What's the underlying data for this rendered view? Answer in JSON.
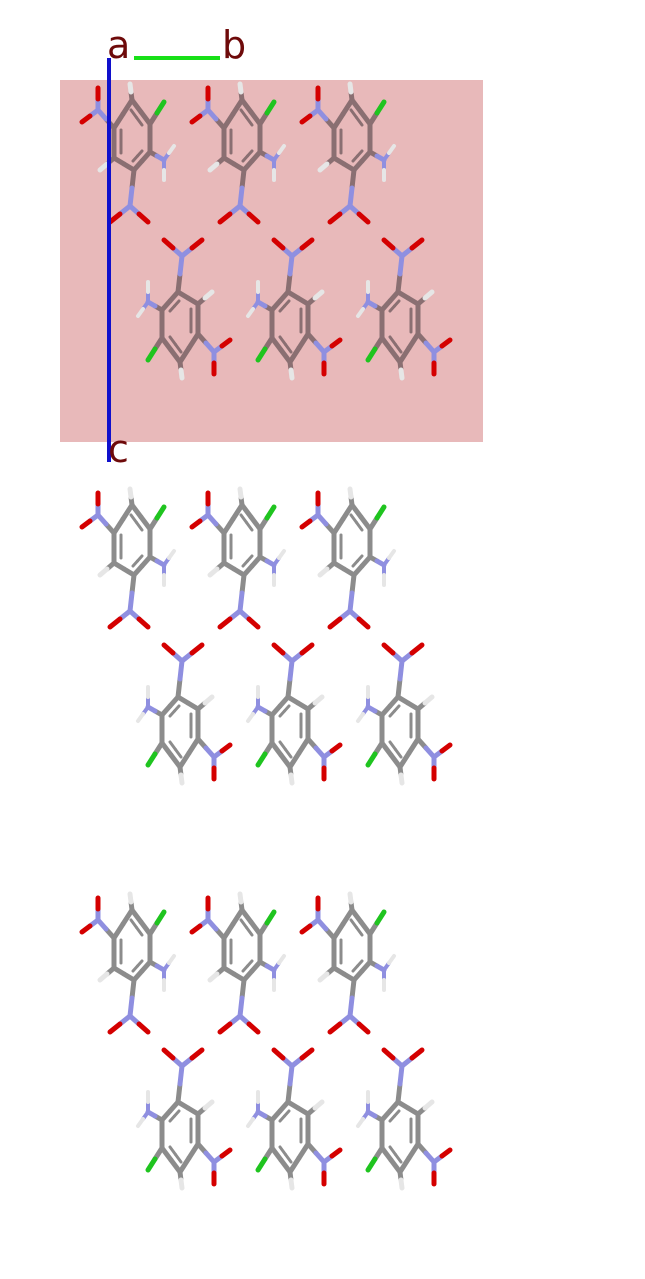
{
  "axes": {
    "a_label": "a",
    "b_label": "b",
    "c_label": "c"
  },
  "colors": {
    "background": "#ffffff",
    "unit_cell": "#e8b9ba",
    "axis_label": "#6e0a0a",
    "axis_b": "#18e018",
    "axis_c": "#1010cc",
    "carbon": "#8c8c8c",
    "carbon_in_cell": "#8a6f72",
    "nitrogen": "#8f8fe0",
    "oxygen": "#d40000",
    "chlorine": "#1fc41f",
    "hydrogen": "#e6e6e6"
  },
  "layers": [
    "unit-cell-layer",
    "middle-layer",
    "bottom-layer"
  ],
  "molecule_kind": "chloro-dinitroaniline"
}
